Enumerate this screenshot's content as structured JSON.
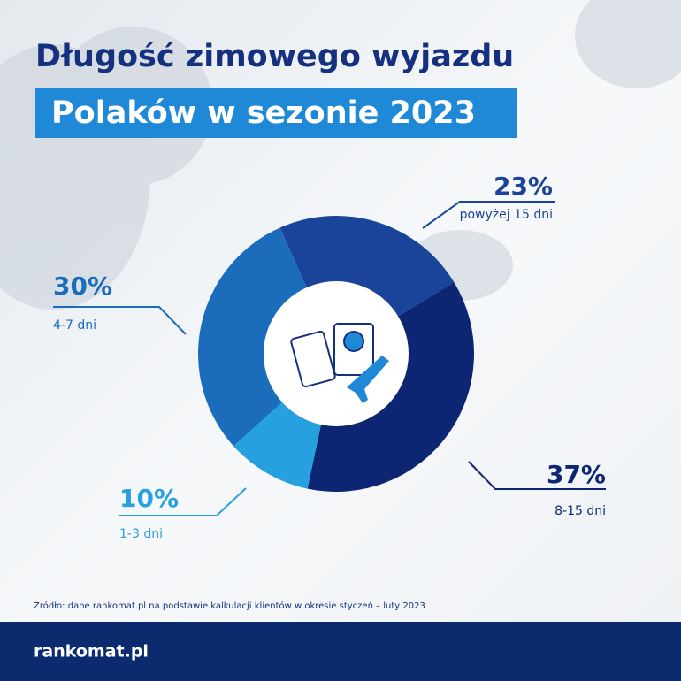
{
  "chart_data": {
    "type": "donut",
    "title": "Długość zimowego wyjazdu",
    "subtitle": "Polaków w sezonie 2023",
    "categories": [
      "powyżej 15 dni",
      "8-15 dni",
      "1-3 dni",
      "4-7 dni"
    ],
    "values": [
      23,
      37,
      10,
      30
    ],
    "value_labels": [
      "23%",
      "37%",
      "10%",
      "30%"
    ],
    "colors": [
      "#1a449a",
      "#0d2673",
      "#27a0e0",
      "#1c6cbc"
    ]
  },
  "source": "Źródło: dane rankomat.pl na podstawie kalkulacji klientów w okresie styczeń – luty 2023",
  "brand": "rankomat.pl"
}
